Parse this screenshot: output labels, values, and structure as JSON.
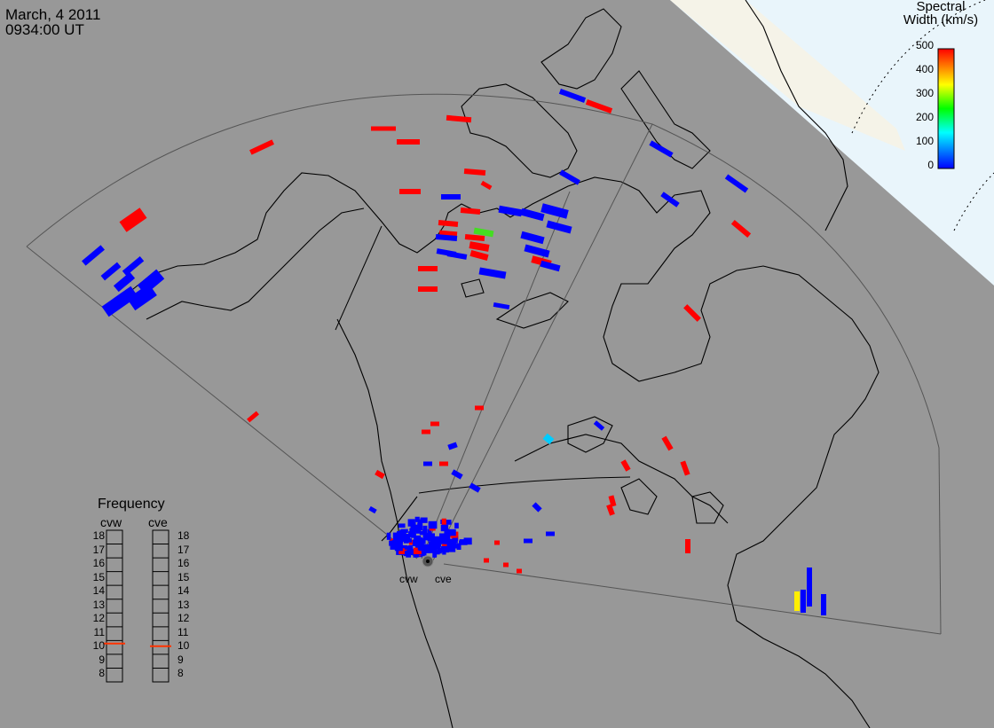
{
  "header": {
    "date": "March, 4 2011",
    "time": "0934:00 UT"
  },
  "colorbar": {
    "title_line1": "Spectral",
    "title_line2": "Width (km/s)",
    "ticks": [
      "500",
      "400",
      "300",
      "200",
      "100",
      "0"
    ],
    "colors": [
      "#0000ff",
      "#00ffff",
      "#00ff00",
      "#ffff00",
      "#ff0000"
    ]
  },
  "frequency_panel": {
    "title": "Frequency",
    "radars": [
      "cvw",
      "cve"
    ],
    "scale": [
      "18",
      "17",
      "16",
      "15",
      "14",
      "13",
      "12",
      "11",
      "10",
      "9",
      "8"
    ],
    "cvw_frequency": 10.8,
    "cve_frequency": 10.6,
    "marker_color": "#ff3300"
  },
  "sites": [
    "cvw",
    "cve"
  ],
  "colors": {
    "background": "#989898",
    "land_outline": "#000000",
    "polar_cap": "#e9f5fb",
    "low_width": "#0000ff",
    "high_width": "#ff0000"
  }
}
